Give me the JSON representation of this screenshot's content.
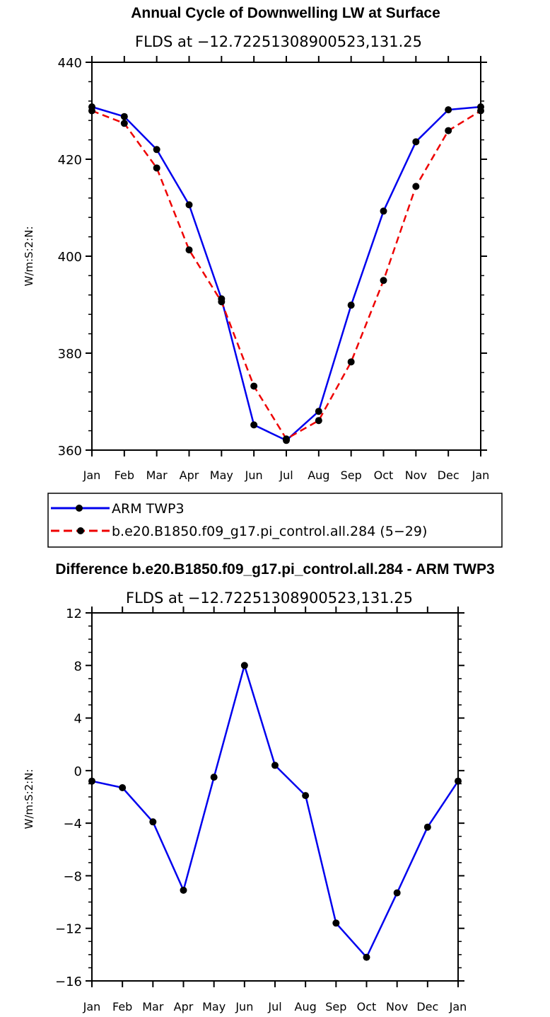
{
  "colors": {
    "blue": "#0000ee",
    "red": "#ee0000",
    "marker": "#000000",
    "axis": "#000000"
  },
  "chart_data": [
    {
      "type": "line",
      "title": "Annual Cycle of Downwelling LW at Surface",
      "subtitle": "FLDS at −12.72251308900523,131.25",
      "ylabel": "W/m:S:2:N:",
      "xlabel": "",
      "ylim": [
        360,
        440
      ],
      "yticks": [
        360,
        380,
        400,
        420,
        440
      ],
      "categories": [
        "Jan",
        "Feb",
        "Mar",
        "Apr",
        "May",
        "Jun",
        "Jul",
        "Aug",
        "Sep",
        "Oct",
        "Nov",
        "Dec",
        "Jan"
      ],
      "series": [
        {
          "name": "ARM TWP3",
          "color": "blue",
          "dash": false,
          "values": [
            430.8,
            428.8,
            422.0,
            410.6,
            391.2,
            365.2,
            362.0,
            368.0,
            389.9,
            409.3,
            423.6,
            430.2,
            430.8
          ]
        },
        {
          "name": "b.e20.B1850.f09_g17.pi_control.all.284 (5−29)",
          "color": "red",
          "dash": true,
          "values": [
            430.0,
            427.4,
            418.2,
            401.3,
            390.6,
            373.2,
            362.3,
            366.1,
            378.2,
            395.0,
            414.4,
            425.9,
            430.0
          ]
        }
      ]
    },
    {
      "type": "line",
      "title": "Difference b.e20.B1850.f09_g17.pi_control.all.284 - ARM TWP3",
      "subtitle": "FLDS at −12.72251308900523,131.25",
      "ylabel": "W/m:S:2:N:",
      "xlabel": "",
      "ylim": [
        -16,
        12
      ],
      "yticks": [
        -16,
        -12,
        -8,
        -4,
        0,
        4,
        8,
        12
      ],
      "ytick_labels": [
        "−16",
        "−12",
        "−8",
        "−4",
        "0",
        "4",
        "8",
        "12"
      ],
      "categories": [
        "Jan",
        "Feb",
        "Mar",
        "Apr",
        "May",
        "Jun",
        "Jul",
        "Aug",
        "Sep",
        "Oct",
        "Nov",
        "Dec",
        "Jan"
      ],
      "series": [
        {
          "name": "Difference",
          "color": "blue",
          "dash": false,
          "values": [
            -0.8,
            -1.3,
            -3.9,
            -9.1,
            -0.5,
            8.0,
            0.4,
            -1.9,
            -11.6,
            -14.2,
            -9.3,
            -4.3,
            -0.8
          ]
        }
      ]
    }
  ],
  "legend": {
    "entries": [
      {
        "label": "ARM TWP3",
        "color": "blue",
        "dash": false
      },
      {
        "label": "b.e20.B1850.f09_g17.pi_control.all.284 (5−29)",
        "color": "red",
        "dash": true
      }
    ]
  }
}
